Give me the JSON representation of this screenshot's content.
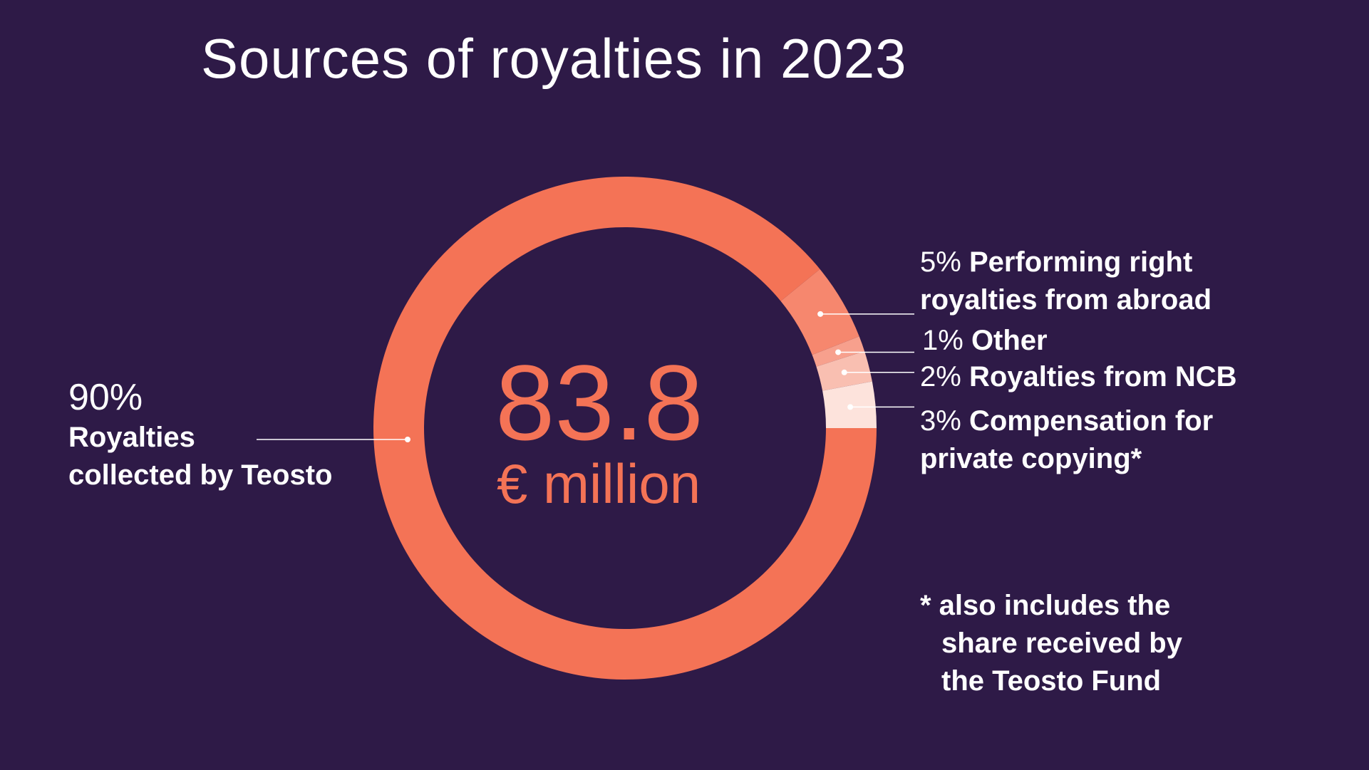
{
  "title": "Sources of royalties in 2023",
  "center": {
    "value": "83.8",
    "unit": "€ million"
  },
  "footnote": {
    "line1": "* also includes the",
    "line2": "share received by",
    "line3": "the Teosto Fund"
  },
  "colors": {
    "background": "#2e1a47",
    "main": "#f47356",
    "abroad": "#f6876e",
    "other": "#f7a08d",
    "ncb": "#f9bfb1",
    "copying": "#fde3dc",
    "leader": "#ffffff"
  },
  "chart_data": {
    "type": "pie",
    "donut": true,
    "categories": [
      "Royalties collected by Teosto",
      "Performing right royalties from abroad",
      "Other",
      "Royalties from NCB",
      "Compensation for private copying*"
    ],
    "values": [
      90,
      5,
      1,
      2,
      3
    ],
    "labels": [
      {
        "pct": "90%",
        "line1": "Royalties",
        "line2": "collected by Teosto"
      },
      {
        "pct": "5%",
        "line1": "Performing right",
        "line2": "royalties from abroad"
      },
      {
        "pct": "1%",
        "line1": "Other",
        "line2": ""
      },
      {
        "pct": "2%",
        "line1": "Royalties from NCB",
        "line2": ""
      },
      {
        "pct": "3%",
        "line1": "Compensation for",
        "line2": "private copying*"
      }
    ],
    "title": "Sources of royalties in 2023"
  }
}
